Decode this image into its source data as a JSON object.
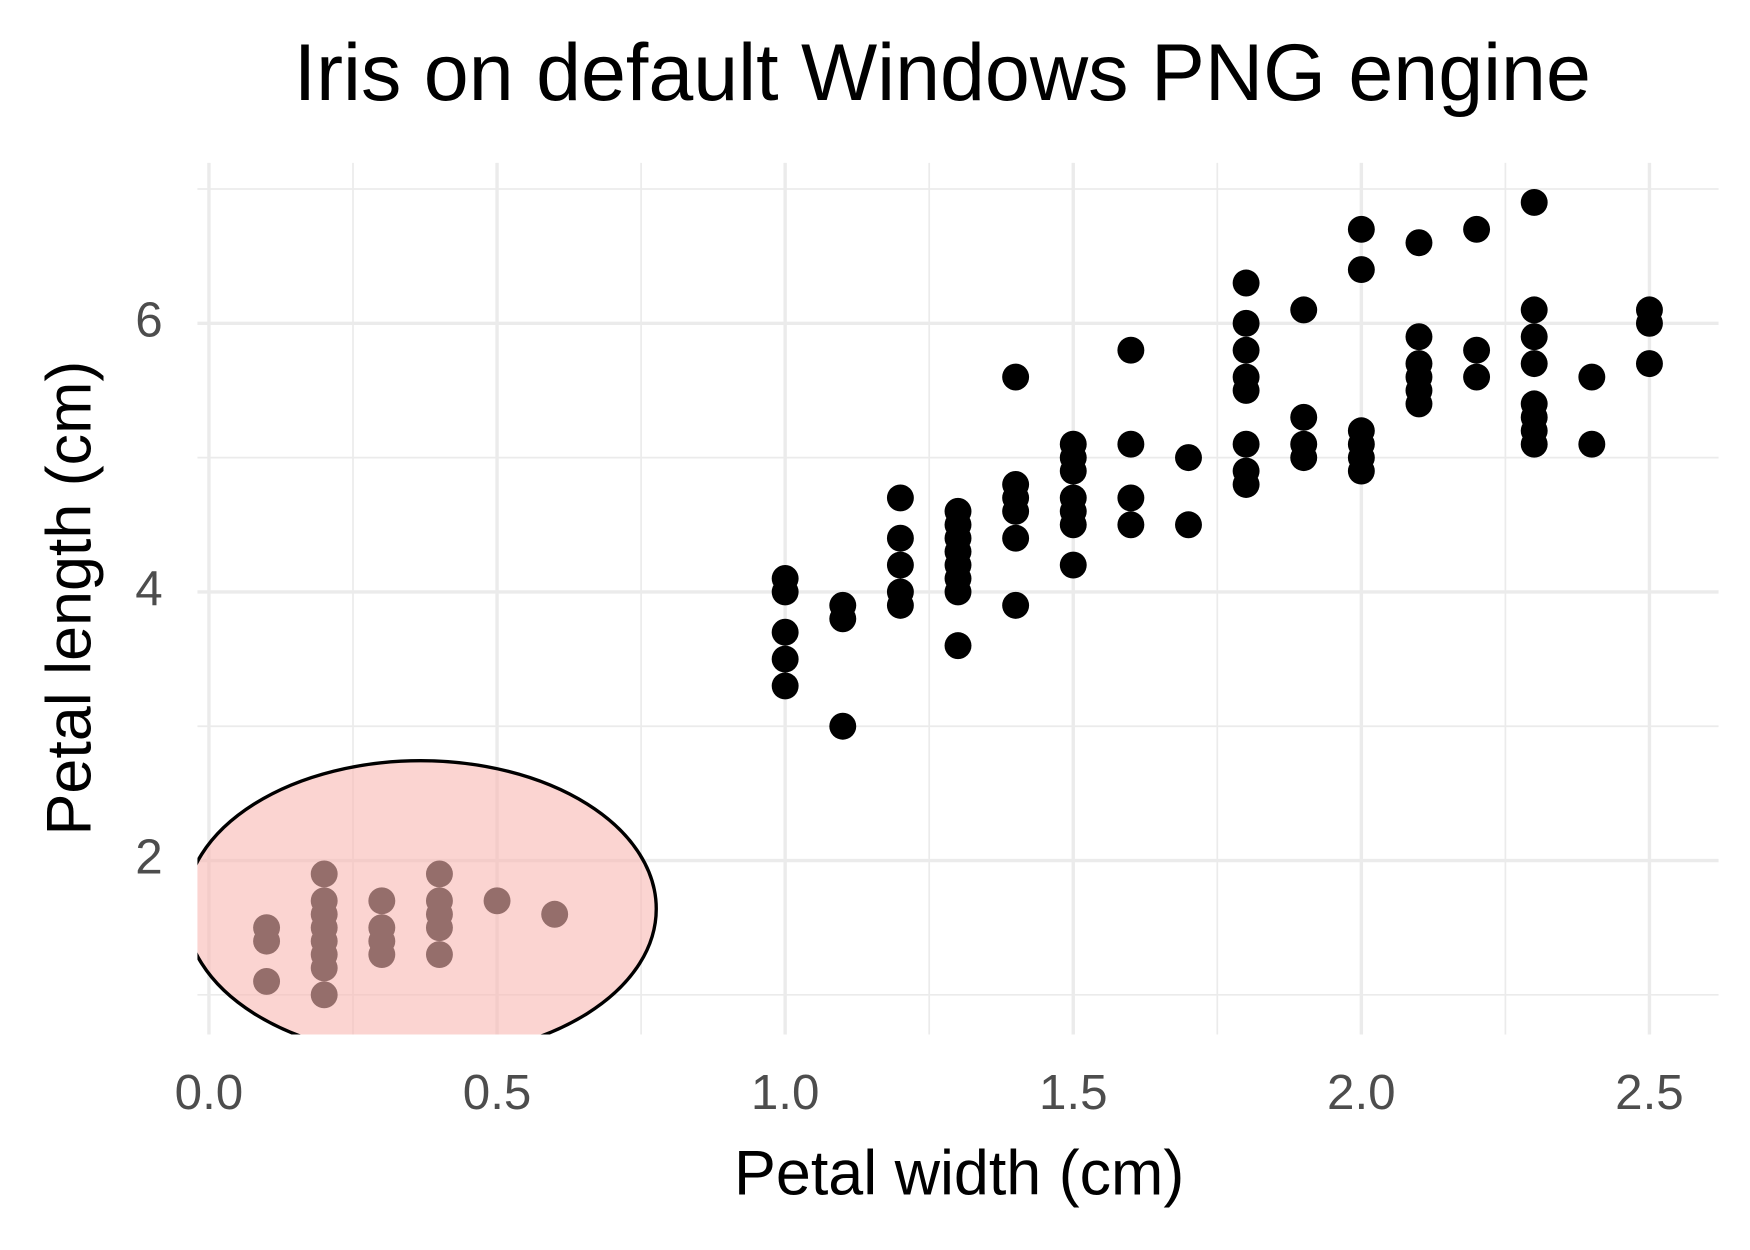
{
  "chart_data": {
    "type": "scatter",
    "title": "Iris on default Windows PNG engine",
    "x_label": "Petal width (cm)",
    "y_label": "Petal length (cm)",
    "series": [
      {
        "color": "#000000",
        "x": [
          0.1,
          0.1,
          0.1,
          0.2,
          0.2,
          0.2,
          0.2,
          0.2,
          0.2,
          0.2,
          0.2,
          0.3,
          0.3,
          0.3,
          0.3,
          0.4,
          0.4,
          0.4,
          0.4,
          0.4,
          0.5,
          0.6,
          1.0,
          1.0,
          1.0,
          1.0,
          1.0,
          1.1,
          1.1,
          1.1,
          1.2,
          1.2,
          1.2,
          1.2,
          1.2,
          1.3,
          1.3,
          1.3,
          1.3,
          1.3,
          1.3,
          1.3,
          1.3,
          1.4,
          1.4,
          1.4,
          1.4,
          1.4,
          1.4,
          1.5,
          1.5,
          1.5,
          1.5,
          1.5,
          1.5,
          1.5,
          1.6,
          1.6,
          1.6,
          1.6,
          1.7,
          1.7,
          1.8,
          1.8,
          1.8,
          1.8,
          1.8,
          1.8,
          1.8,
          1.8,
          1.9,
          1.9,
          1.9,
          1.9,
          2.0,
          2.0,
          2.0,
          2.0,
          2.0,
          2.0,
          2.1,
          2.1,
          2.1,
          2.1,
          2.1,
          2.1,
          2.2,
          2.2,
          2.2,
          2.3,
          2.3,
          2.3,
          2.3,
          2.3,
          2.3,
          2.3,
          2.3,
          2.4,
          2.4,
          2.5,
          2.5,
          2.5
        ],
        "values": [
          1.1,
          1.4,
          1.5,
          1.0,
          1.2,
          1.3,
          1.4,
          1.5,
          1.6,
          1.7,
          1.9,
          1.3,
          1.4,
          1.5,
          1.7,
          1.3,
          1.5,
          1.6,
          1.7,
          1.9,
          1.7,
          1.6,
          3.3,
          3.5,
          3.7,
          4.0,
          4.1,
          3.0,
          3.8,
          3.9,
          3.9,
          4.0,
          4.2,
          4.4,
          4.7,
          3.6,
          4.0,
          4.1,
          4.2,
          4.3,
          4.4,
          4.5,
          4.6,
          3.9,
          4.4,
          4.6,
          4.7,
          4.8,
          5.6,
          4.2,
          4.5,
          4.6,
          4.7,
          4.9,
          5.0,
          5.1,
          4.5,
          4.7,
          5.1,
          5.8,
          4.5,
          5.0,
          4.8,
          4.9,
          5.1,
          5.5,
          5.6,
          5.8,
          6.0,
          6.3,
          5.0,
          5.1,
          5.3,
          6.1,
          4.9,
          5.0,
          5.1,
          5.2,
          6.4,
          6.7,
          5.4,
          5.5,
          5.6,
          5.7,
          5.9,
          6.6,
          5.6,
          5.8,
          6.7,
          5.1,
          5.2,
          5.3,
          5.4,
          5.7,
          5.9,
          6.1,
          6.9,
          5.1,
          5.6,
          5.7,
          6.0,
          6.1
        ]
      }
    ],
    "xlim": [
      -0.02,
      2.62
    ],
    "ylim": [
      0.705,
      7.195
    ],
    "xticks": [
      {
        "value": 0,
        "label": "0.0"
      },
      0.5,
      {
        "value": 1,
        "label": "1.0"
      },
      1.5,
      {
        "value": 2,
        "label": "2.0"
      },
      2.5
    ],
    "yticks": [
      2,
      4,
      6
    ],
    "x_minor_ticks": [
      0.25,
      0.75,
      1.25,
      1.75,
      2.25
    ],
    "y_minor_ticks": [
      1,
      3,
      5,
      7
    ],
    "grid": true
  }
}
